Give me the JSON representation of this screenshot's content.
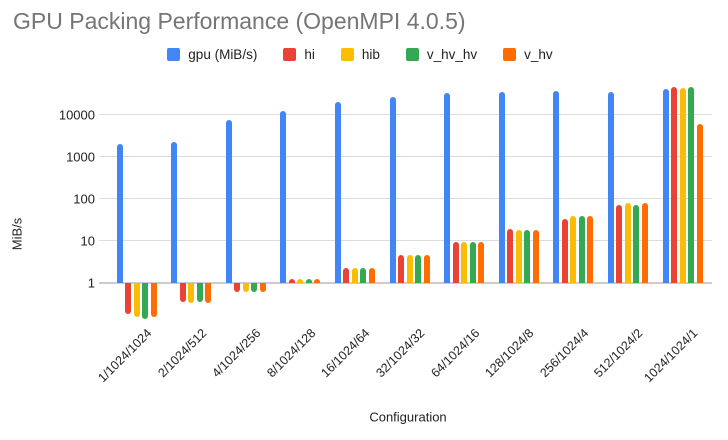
{
  "chart_data": {
    "type": "bar",
    "title": "GPU Packing Performance (OpenMPI 4.0.5)",
    "xlabel": "Configuration",
    "ylabel": "MiB/s",
    "y_scale": "log",
    "yticks": [
      1,
      10,
      100,
      1000,
      10000
    ],
    "ylim": [
      0.14,
      55000
    ],
    "grid": true,
    "legend_position": "top",
    "categories": [
      "1/1024/1024",
      "2/1024/512",
      "4/1024/256",
      "8/1024/128",
      "16/1024/64",
      "32/1024/32",
      "64/1024/16",
      "128/1024/8",
      "256/1024/4",
      "512/1024/2",
      "1024/1024/1"
    ],
    "series": [
      {
        "name": "gpu (MiB/s)",
        "color": "#4285F4",
        "values": [
          2000,
          2300,
          7500,
          12000,
          20000,
          26000,
          33000,
          35000,
          37000,
          35000,
          41000
        ]
      },
      {
        "name": "hi",
        "color": "#EA4335",
        "values": [
          0.18,
          0.35,
          0.6,
          1.25,
          2.2,
          4.6,
          9.5,
          19,
          33,
          70,
          45000
        ]
      },
      {
        "name": "hib",
        "color": "#FBBC04",
        "values": [
          0.15,
          0.33,
          0.6,
          1.25,
          2.2,
          4.6,
          9.5,
          18,
          38,
          78,
          43000
        ]
      },
      {
        "name": "v_hv_hv",
        "color": "#34A853",
        "values": [
          0.14,
          0.34,
          0.6,
          1.25,
          2.2,
          4.6,
          9.5,
          18,
          38,
          70,
          46000
        ]
      },
      {
        "name": "v_hv",
        "color": "#FF6D01",
        "values": [
          0.15,
          0.33,
          0.6,
          1.25,
          2.3,
          4.6,
          9.5,
          18,
          38,
          78,
          6000
        ]
      }
    ]
  }
}
